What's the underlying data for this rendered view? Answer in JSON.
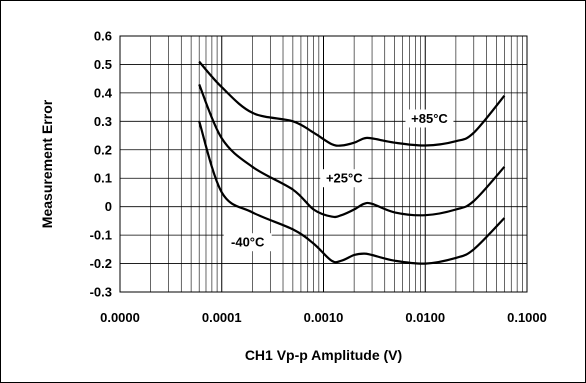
{
  "chart_data": {
    "type": "line",
    "title": "",
    "xlabel": "CH1 Vp-p Amplitude (V)",
    "ylabel": "Measurement Error",
    "x_scale": "log",
    "xlim": [
      1e-05,
      0.1
    ],
    "ylim": [
      -0.3,
      0.6
    ],
    "x_ticks": [
      1e-05,
      0.0001,
      0.001,
      0.01,
      0.1
    ],
    "x_tick_labels": [
      "0.0000",
      "0.0001",
      "0.0010",
      "0.0100",
      "0.1000"
    ],
    "y_ticks": [
      -0.3,
      -0.2,
      -0.1,
      0,
      0.1,
      0.2,
      0.3,
      0.4,
      0.5,
      0.6
    ],
    "y_tick_labels": [
      "-0.3",
      "-0.2",
      "-0.1",
      "0",
      "0.1",
      "0.2",
      "0.3",
      "0.4",
      "0.5",
      "0.6"
    ],
    "grid": true,
    "legend": "none",
    "line_color": "#000000",
    "series": [
      {
        "x": [
          6e-05,
          0.0001,
          0.0002,
          0.0005,
          0.0008,
          0.0012,
          0.0015,
          0.002,
          0.0025,
          0.003,
          0.005,
          0.01,
          0.02,
          0.03,
          0.06
        ],
        "y": [
          0.51,
          0.42,
          0.33,
          0.3,
          0.26,
          0.22,
          0.215,
          0.225,
          0.24,
          0.24,
          0.225,
          0.215,
          0.23,
          0.26,
          0.39
        ]
      },
      {
        "x": [
          6e-05,
          0.0001,
          0.0002,
          0.0005,
          0.0008,
          0.0012,
          0.0015,
          0.002,
          0.0025,
          0.003,
          0.005,
          0.01,
          0.02,
          0.03,
          0.06
        ],
        "y": [
          0.43,
          0.24,
          0.14,
          0.06,
          -0.01,
          -0.035,
          -0.03,
          -0.01,
          0.01,
          0.01,
          -0.02,
          -0.03,
          -0.01,
          0.02,
          0.14
        ]
      },
      {
        "x": [
          6e-05,
          0.0001,
          0.0002,
          0.0005,
          0.0008,
          0.0012,
          0.0015,
          0.002,
          0.0025,
          0.003,
          0.005,
          0.01,
          0.02,
          0.03,
          0.06
        ],
        "y": [
          0.3,
          0.05,
          -0.02,
          -0.08,
          -0.13,
          -0.19,
          -0.19,
          -0.17,
          -0.165,
          -0.17,
          -0.19,
          -0.2,
          -0.18,
          -0.15,
          -0.04
        ]
      }
    ],
    "annotations": [
      {
        "text": "+85°C",
        "x": 0.011,
        "y": 0.31
      },
      {
        "text": "+25°C",
        "x": 0.0016,
        "y": 0.1
      },
      {
        "text": "-40°C",
        "x": 0.00018,
        "y": -0.125
      }
    ]
  }
}
